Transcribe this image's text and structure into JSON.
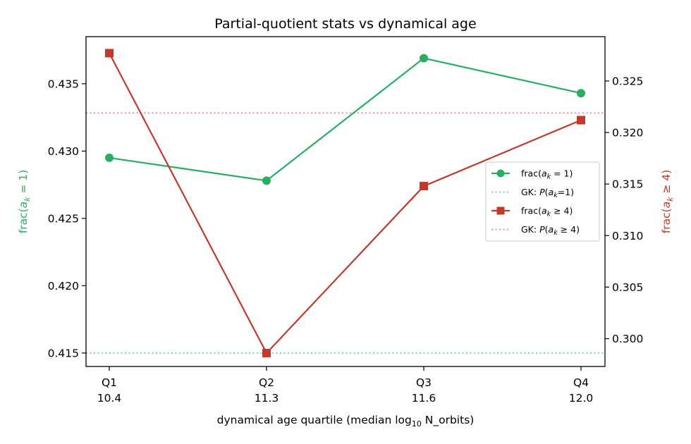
{
  "chart_data": {
    "type": "line",
    "title": "Partial-quotient stats vs dynamical age",
    "xlabel": "dynamical age quartile (median log",
    "xlabel_sub": "10",
    "xlabel_tail": " N_orbits)",
    "categories": [
      {
        "name": "Q1",
        "value": "10.4"
      },
      {
        "name": "Q2",
        "value": "11.3"
      },
      {
        "name": "Q3",
        "value": "11.6"
      },
      {
        "name": "Q4",
        "value": "12.0"
      }
    ],
    "left_axis": {
      "label_pre": "frac(",
      "label_var": "a",
      "label_sub": "k",
      "label_post": " = 1)",
      "color": "#27ae60",
      "ylim": [
        0.414,
        0.4385
      ],
      "ticks": [
        "0.415",
        "0.420",
        "0.425",
        "0.430",
        "0.435"
      ]
    },
    "right_axis": {
      "label_pre": "frac(",
      "label_var": "a",
      "label_sub": "k",
      "label_post": " ≥ 4)",
      "color": "#c0392b",
      "ylim": [
        0.2973,
        0.3293
      ],
      "ticks": [
        "0.300",
        "0.305",
        "0.310",
        "0.315",
        "0.320",
        "0.325"
      ]
    },
    "series": [
      {
        "name": "frac(a_k = 1)",
        "axis": "left",
        "marker": "circle",
        "color": "#27ae60",
        "values": [
          0.4295,
          0.4278,
          0.4369,
          0.4343
        ]
      },
      {
        "name": "frac(a_k ≥ 4)",
        "axis": "right",
        "marker": "square",
        "color": "#c0392b",
        "values": [
          0.3277,
          0.2986,
          0.3148,
          0.3212
        ]
      }
    ],
    "reference_lines": [
      {
        "name": "GK: P(a_k=1)",
        "axis": "left",
        "value": 0.415,
        "color": "#7fd3a6",
        "style": "dotted"
      },
      {
        "name": "GK: P(a_k ≥ 4)",
        "axis": "right",
        "value": 0.3219,
        "color": "#e89090",
        "style": "dotted"
      }
    ],
    "legend": {
      "placement": "center-right",
      "entries": [
        {
          "kind": "line-marker",
          "marker": "circle",
          "color": "#27ae60",
          "pre": "frac(",
          "var": "a",
          "sub": "k",
          "post": " = 1)"
        },
        {
          "kind": "dotted",
          "color": "#7fd3a6",
          "pre": "GK: ",
          "var": "P",
          "mid": "(",
          "var2": "a",
          "sub": "k",
          "post": "=1)"
        },
        {
          "kind": "line-marker",
          "marker": "square",
          "color": "#c0392b",
          "pre": "frac(",
          "var": "a",
          "sub": "k",
          "post": " ≥  4)"
        },
        {
          "kind": "dotted",
          "color": "#e89090",
          "pre": "GK: ",
          "var": "P",
          "mid": "(",
          "var2": "a",
          "sub": "k",
          "post": " ≥  4)"
        }
      ]
    },
    "grid": false
  }
}
